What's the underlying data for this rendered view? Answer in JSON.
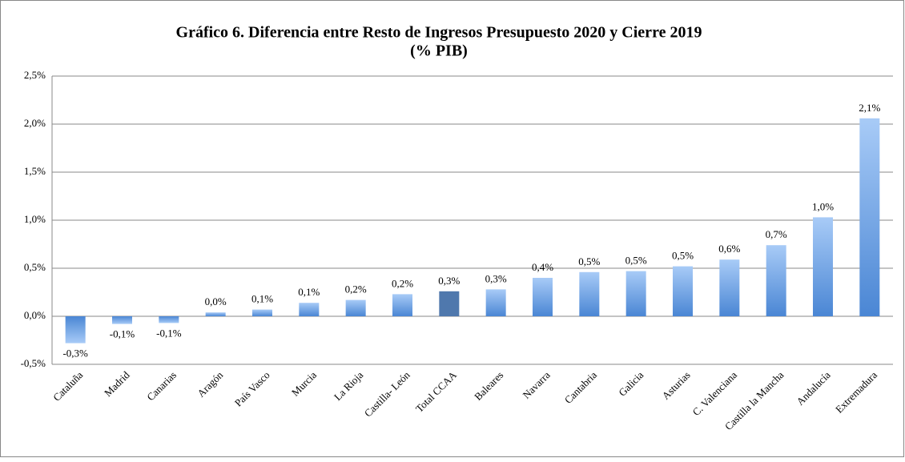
{
  "chart_data": {
    "type": "bar",
    "title": "Gráfico 6. Diferencia entre Resto de Ingresos Presupuesto 2020 y Cierre 2019",
    "subtitle": "(% PIB)",
    "categories": [
      "Cataluña",
      "Madrid",
      "Canarias",
      "Aragón",
      "País Vasco",
      "Murcia",
      "La Rioja",
      "Castilla- León",
      "Total CCAA",
      "Baleares",
      "Navarra",
      "Cantabria",
      "Galicia",
      "Asturias",
      "C. Valenciana",
      "Castilla la Mancha",
      "Andalucía",
      "Extremadura"
    ],
    "values": [
      -0.28,
      -0.08,
      -0.07,
      0.04,
      0.07,
      0.14,
      0.17,
      0.23,
      0.26,
      0.28,
      0.4,
      0.46,
      0.47,
      0.52,
      0.59,
      0.74,
      1.03,
      2.06
    ],
    "value_labels": [
      "-0,3%",
      "-0,1%",
      "-0,1%",
      "0,0%",
      "0,1%",
      "0,1%",
      "0,2%",
      "0,2%",
      "0,3%",
      "0,3%",
      "0,4%",
      "0,5%",
      "0,5%",
      "0,5%",
      "0,6%",
      "0,7%",
      "1,0%",
      "2,1%"
    ],
    "colors": [
      "#4a86d4",
      "#4a86d4",
      "#4a86d4",
      "#4a86d4",
      "#4a86d4",
      "#4a86d4",
      "#4a86d4",
      "#4a86d4",
      "#4f78ad",
      "#4a86d4",
      "#4a86d4",
      "#4a86d4",
      "#4a86d4",
      "#4a86d4",
      "#4a86d4",
      "#4a86d4",
      "#4a86d4",
      "#4a86d4"
    ],
    "ylim": [
      -0.5,
      2.5
    ],
    "yticks": [
      {
        "value": -0.5,
        "label": "-0,5%"
      },
      {
        "value": 0,
        "label": "0,0%"
      },
      {
        "value": 0.5,
        "label": "0,5%"
      },
      {
        "value": 1,
        "label": "1,0%"
      },
      {
        "value": 1.5,
        "label": "1,5%"
      },
      {
        "value": 2,
        "label": "2,0%"
      },
      {
        "value": 2.5,
        "label": "2,5%"
      }
    ],
    "grid": true
  }
}
